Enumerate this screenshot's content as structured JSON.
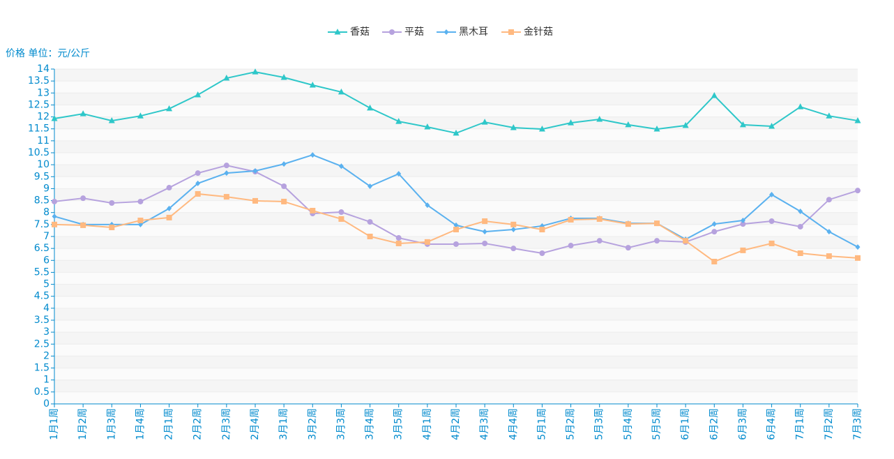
{
  "chart_data": {
    "type": "line",
    "ylabel": "价格 单位：元/公斤",
    "categories": [
      "1月1周",
      "1月2周",
      "1月3周",
      "1月4周",
      "2月1周",
      "2月2周",
      "2月3周",
      "2月4周",
      "3月1周",
      "3月2周",
      "3月3周",
      "3月4周",
      "3月5周",
      "4月1周",
      "4月2周",
      "4月3周",
      "4月4周",
      "5月1周",
      "5月2周",
      "5月3周",
      "5月4周",
      "5月5周",
      "6月1周",
      "6月2周",
      "6月3周",
      "6月4周",
      "7月1周",
      "7月2周",
      "7月3周"
    ],
    "series": [
      {
        "name": "香菇",
        "color": "#2ec7c9",
        "marker": "triangle",
        "values": [
          11.93,
          12.13,
          11.84,
          12.04,
          12.34,
          12.92,
          13.62,
          13.88,
          13.65,
          13.33,
          13.04,
          12.37,
          11.81,
          11.58,
          11.32,
          11.78,
          11.55,
          11.49,
          11.75,
          11.9,
          11.67,
          11.49,
          11.64,
          12.89,
          11.67,
          11.61,
          12.42,
          12.04,
          11.84
        ]
      },
      {
        "name": "平菇",
        "color": "#b6a2de",
        "marker": "circle",
        "values": [
          8.46,
          8.6,
          8.4,
          8.46,
          9.04,
          9.65,
          9.97,
          9.71,
          9.1,
          7.96,
          8.02,
          7.61,
          6.94,
          6.68,
          6.68,
          6.71,
          6.5,
          6.3,
          6.62,
          6.82,
          6.53,
          6.82,
          6.77,
          7.2,
          7.52,
          7.64,
          7.41,
          8.54,
          8.92
        ]
      },
      {
        "name": "黑木耳",
        "color": "#5ab1ef",
        "marker": "diamond",
        "values": [
          7.84,
          7.5,
          7.5,
          7.5,
          8.17,
          9.22,
          9.65,
          9.74,
          10.03,
          10.41,
          9.94,
          9.1,
          9.62,
          8.31,
          7.47,
          7.2,
          7.29,
          7.44,
          7.76,
          7.76,
          7.55,
          7.55,
          6.88,
          7.52,
          7.67,
          8.75,
          8.05,
          7.2,
          6.56
        ]
      },
      {
        "name": "金针菇",
        "color": "#ffb980",
        "marker": "square",
        "values": [
          7.5,
          7.47,
          7.38,
          7.67,
          7.79,
          8.78,
          8.66,
          8.49,
          8.46,
          8.08,
          7.73,
          7.0,
          6.71,
          6.77,
          7.29,
          7.64,
          7.5,
          7.29,
          7.7,
          7.73,
          7.52,
          7.55,
          6.82,
          5.95,
          6.42,
          6.71,
          6.3,
          6.18,
          6.1
        ]
      }
    ],
    "ylim": [
      0,
      14
    ],
    "yticks": [
      0,
      0.5,
      1,
      1.5,
      2,
      2.5,
      3,
      3.5,
      4,
      4.5,
      5,
      5.5,
      6,
      6.5,
      7,
      7.5,
      8,
      8.5,
      9,
      9.5,
      10,
      10.5,
      11,
      11.5,
      12,
      12.5,
      13,
      13.5,
      14
    ],
    "grid": true,
    "legend": "top"
  }
}
